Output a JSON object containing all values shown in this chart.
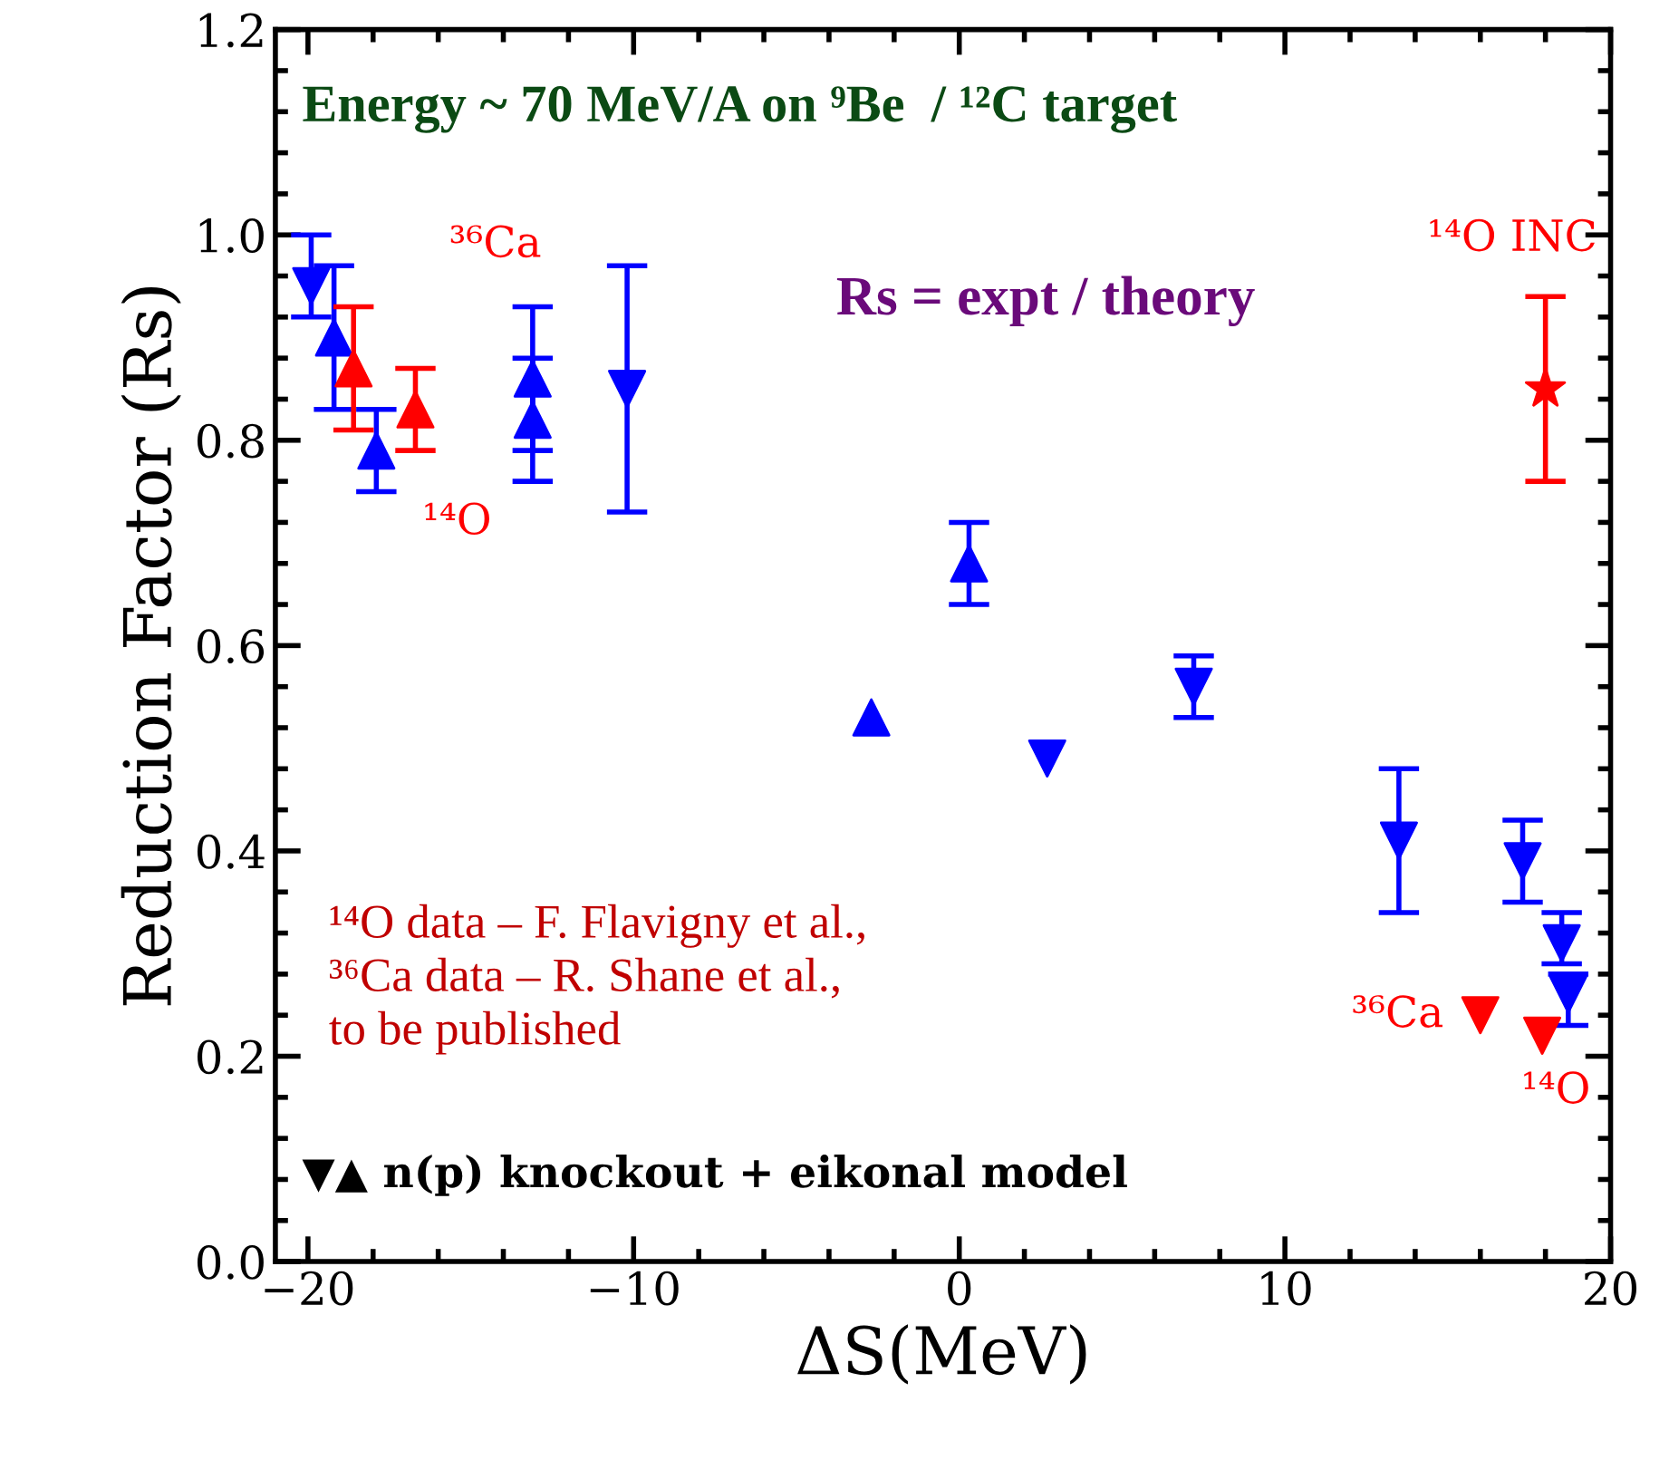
{
  "chart_data": {
    "type": "scatter",
    "title": "Energy ~ 70 MeV/A on ⁹Be  / ¹²C target",
    "xlabel": "ΔS(MeV)",
    "ylabel": "Reduction Factor (Rs)",
    "xlim": [
      -21,
      20
    ],
    "xticks": [
      -20,
      -10,
      0,
      10,
      20
    ],
    "ylim": [
      0,
      1.2
    ],
    "yticks": [
      {
        "value": 0,
        "label": "0.0"
      },
      0.2,
      0.4,
      0.6,
      0.8,
      {
        "value": 1,
        "label": "1.0"
      },
      1.2
    ],
    "grid": false,
    "series": [
      {
        "color": "#0000ff",
        "marker": "triangle_down",
        "x": [
          -19.9,
          -10.2,
          2.7,
          7.2,
          13.5,
          17.3,
          18.5,
          18.7
        ],
        "values": [
          0.95,
          0.85,
          0.49,
          0.56,
          0.41,
          0.39,
          0.31,
          0.26
        ],
        "errors": [
          [
            0.92,
            1.0
          ],
          [
            0.73,
            0.97
          ],
          null,
          [
            0.53,
            0.59
          ],
          [
            0.34,
            0.48
          ],
          [
            0.35,
            0.43
          ],
          [
            0.29,
            0.34
          ],
          [
            0.23,
            0.28
          ]
        ]
      },
      {
        "color": "#0000ff",
        "marker": "triangle",
        "x": [
          -19.2,
          -17.9,
          -13.1,
          -13.1,
          -2.7,
          0.3
        ],
        "values": [
          0.9,
          0.79,
          0.86,
          0.82,
          0.53,
          0.68
        ],
        "errors": [
          [
            0.83,
            0.97
          ],
          [
            0.75,
            0.83
          ],
          [
            0.79,
            0.93
          ],
          [
            0.76,
            0.88
          ],
          null,
          [
            0.64,
            0.72
          ]
        ]
      },
      {
        "color": "#ff0000",
        "marker": "triangle",
        "x": [
          -18.6,
          -16.7
        ],
        "values": [
          0.87,
          0.83
        ],
        "errors": [
          [
            0.81,
            0.93
          ],
          [
            0.79,
            0.87
          ]
        ]
      },
      {
        "color": "#ff0000",
        "marker": "triangle_down",
        "x": [
          16.0,
          17.9
        ],
        "values": [
          0.24,
          0.22
        ]
      },
      {
        "color": "#ff0000",
        "marker": "star",
        "x": [
          18.0
        ],
        "values": [
          0.85
        ],
        "errors": [
          [
            0.76,
            0.94
          ]
        ]
      }
    ],
    "annotations": [
      "³⁶Ca",
      "¹⁴O",
      "¹⁴O INC",
      "³⁶Ca",
      "¹⁴O",
      "Rs = expt / theory",
      "¹⁴O data – F. Flavigny et al.,\n³⁶Ca data – R. Shane et al.,\nto be published",
      "▼▲ n(p) knockout + eikonal model"
    ]
  }
}
